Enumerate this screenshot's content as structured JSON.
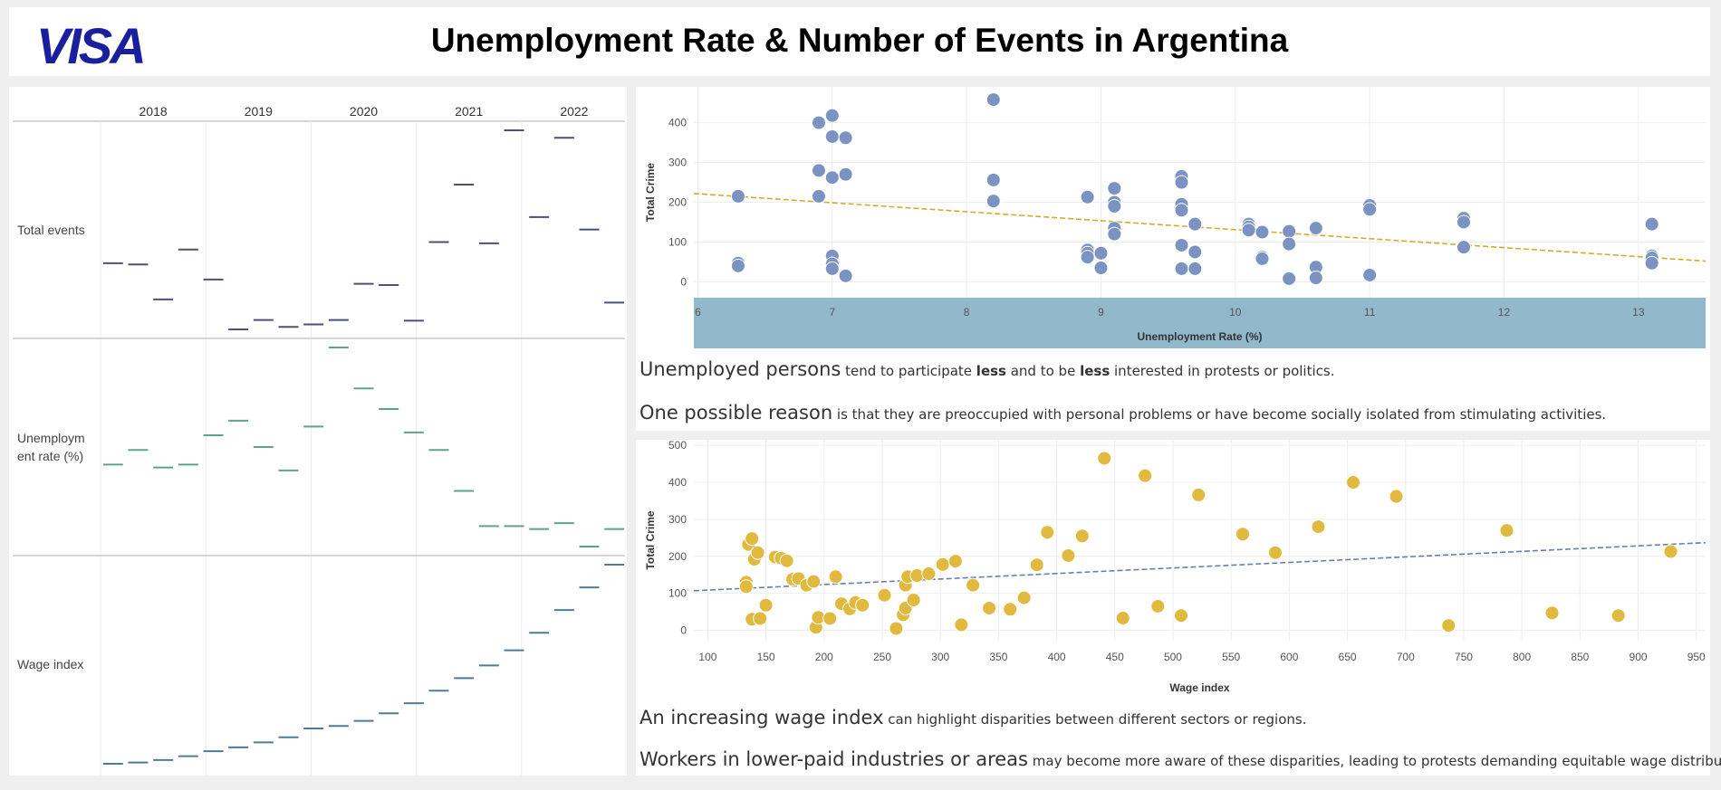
{
  "header": {
    "logo_text": "VISA",
    "title": "Unemployment Rate & Number of Events in Argentina"
  },
  "colors": {
    "events": "#4e4f7a",
    "unemployment": "#5fa38d",
    "wage": "#4b7d96",
    "scatter1_dot": "#7b93c2",
    "scatter1_trend": "#d4ac2b",
    "scatter2_dot": "#e0b93e",
    "scatter2_trend": "#6a7fb0",
    "axis_band": "#92b8cc",
    "logo": "#1a1f9e"
  },
  "left_chart": {
    "years": [
      "2018",
      "2019",
      "2020",
      "2021",
      "2022"
    ],
    "rows": [
      {
        "label": "Total events",
        "label_lines": [
          "Total events"
        ],
        "values": [
          290,
          288,
          232,
          312,
          264,
          184,
          199,
          188,
          192,
          199,
          257,
          255,
          198,
          324,
          416,
          322,
          503,
          364,
          491,
          344,
          227
        ]
      },
      {
        "label": "Unemployment rate (%)",
        "label_lines": [
          "Unemploym",
          "ent rate (%)"
        ],
        "values": [
          9.1,
          9.6,
          9.0,
          9.1,
          10.1,
          10.6,
          9.7,
          8.9,
          10.4,
          13.1,
          11.7,
          11.0,
          10.2,
          9.6,
          8.2,
          7.0,
          7.0,
          6.9,
          7.1,
          6.3,
          6.9
        ]
      },
      {
        "label": "Wage index",
        "label_lines": [
          "Wage index"
        ],
        "values": [
          130,
          135,
          145,
          160,
          180,
          195,
          215,
          235,
          270,
          280,
          300,
          330,
          370,
          420,
          470,
          520,
          580,
          650,
          740,
          830,
          920
        ]
      }
    ]
  },
  "chart_data": [
    {
      "type": "scatter",
      "xlabel": "Unemployment Rate (%)",
      "ylabel": "Total Crime",
      "xlim": [
        5.97,
        13.5
      ],
      "ylim": [
        -40,
        490
      ],
      "xticks": [
        6,
        7,
        8,
        9,
        10,
        11,
        12,
        13
      ],
      "yticks": [
        0,
        100,
        200,
        300,
        400
      ],
      "trend": {
        "x": [
          5.97,
          13.5
        ],
        "y": [
          222,
          52
        ]
      },
      "points": [
        [
          6.3,
          215
        ],
        [
          6.3,
          47
        ],
        [
          6.3,
          40
        ],
        [
          6.9,
          400
        ],
        [
          6.9,
          280
        ],
        [
          6.9,
          215
        ],
        [
          7.0,
          418
        ],
        [
          7.0,
          365
        ],
        [
          7.0,
          262
        ],
        [
          7.0,
          65
        ],
        [
          7.0,
          45
        ],
        [
          7.0,
          33
        ],
        [
          7.1,
          362
        ],
        [
          7.1,
          270
        ],
        [
          7.1,
          15
        ],
        [
          8.2,
          458
        ],
        [
          8.2,
          256
        ],
        [
          8.2,
          203
        ],
        [
          8.9,
          213
        ],
        [
          8.9,
          80
        ],
        [
          8.9,
          72
        ],
        [
          8.9,
          62
        ],
        [
          9.0,
          72
        ],
        [
          9.0,
          35
        ],
        [
          9.1,
          235
        ],
        [
          9.1,
          200
        ],
        [
          9.1,
          190
        ],
        [
          9.1,
          135
        ],
        [
          9.1,
          120
        ],
        [
          9.6,
          265
        ],
        [
          9.6,
          250
        ],
        [
          9.6,
          195
        ],
        [
          9.6,
          180
        ],
        [
          9.6,
          92
        ],
        [
          9.6,
          33
        ],
        [
          9.7,
          145
        ],
        [
          9.7,
          75
        ],
        [
          9.7,
          33
        ],
        [
          10.1,
          145
        ],
        [
          10.1,
          138
        ],
        [
          10.1,
          130
        ],
        [
          10.2,
          125
        ],
        [
          10.2,
          62
        ],
        [
          10.2,
          58
        ],
        [
          10.4,
          127
        ],
        [
          10.4,
          95
        ],
        [
          10.4,
          8
        ],
        [
          10.6,
          135
        ],
        [
          10.6,
          37
        ],
        [
          10.6,
          10
        ],
        [
          11.0,
          192
        ],
        [
          11.0,
          182
        ],
        [
          11.0,
          17
        ],
        [
          11.7,
          160
        ],
        [
          11.7,
          150
        ],
        [
          11.7,
          87
        ],
        [
          13.1,
          145
        ],
        [
          13.1,
          65
        ],
        [
          13.1,
          60
        ],
        [
          13.1,
          47
        ]
      ]
    },
    {
      "type": "scatter",
      "xlabel": "Wage index",
      "ylabel": "Total Crime",
      "xlim": [
        88,
        958
      ],
      "ylim": [
        -28,
        515
      ],
      "xticks": [
        100,
        150,
        200,
        250,
        300,
        350,
        400,
        450,
        500,
        550,
        600,
        650,
        700,
        750,
        800,
        850,
        900,
        950
      ],
      "yticks": [
        0,
        100,
        200,
        300,
        400,
        500
      ],
      "trend": {
        "x": [
          88,
          958
        ],
        "y": [
          107,
          237
        ]
      },
      "points": [
        [
          133,
          130
        ],
        [
          133,
          118
        ],
        [
          135,
          232
        ],
        [
          138,
          248
        ],
        [
          140,
          192
        ],
        [
          143,
          210
        ],
        [
          138,
          30
        ],
        [
          145,
          32
        ],
        [
          150,
          68
        ],
        [
          158,
          198
        ],
        [
          163,
          195
        ],
        [
          168,
          188
        ],
        [
          173,
          138
        ],
        [
          178,
          140
        ],
        [
          185,
          122
        ],
        [
          191,
          132
        ],
        [
          193,
          8
        ],
        [
          195,
          35
        ],
        [
          205,
          32
        ],
        [
          210,
          145
        ],
        [
          215,
          72
        ],
        [
          222,
          58
        ],
        [
          227,
          75
        ],
        [
          233,
          68
        ],
        [
          252,
          95
        ],
        [
          262,
          5
        ],
        [
          268,
          42
        ],
        [
          270,
          60
        ],
        [
          270,
          122
        ],
        [
          272,
          145
        ],
        [
          277,
          82
        ],
        [
          280,
          148
        ],
        [
          290,
          153
        ],
        [
          302,
          178
        ],
        [
          313,
          187
        ],
        [
          318,
          15
        ],
        [
          328,
          122
        ],
        [
          342,
          60
        ],
        [
          360,
          57
        ],
        [
          372,
          88
        ],
        [
          383,
          177
        ],
        [
          392,
          265
        ],
        [
          410,
          202
        ],
        [
          422,
          255
        ],
        [
          441,
          465
        ],
        [
          457,
          33
        ],
        [
          476,
          418
        ],
        [
          487,
          65
        ],
        [
          507,
          40
        ],
        [
          522,
          366
        ],
        [
          560,
          260
        ],
        [
          588,
          210
        ],
        [
          625,
          280
        ],
        [
          655,
          400
        ],
        [
          692,
          362
        ],
        [
          737,
          13
        ],
        [
          787,
          270
        ],
        [
          826,
          47
        ],
        [
          883,
          40
        ],
        [
          928,
          213
        ]
      ]
    }
  ],
  "insights": {
    "top": [
      {
        "big": "Unemployed persons",
        "parts": [
          " tend to participate ",
          "less",
          " and to be ",
          "less",
          " interested in protests or politics."
        ]
      },
      {
        "big": "One possible reason",
        "parts": [
          " is that they are preoccupied with personal problems or have become socially isolated from stimulating activities."
        ]
      }
    ],
    "bottom": [
      {
        "big": "An increasing wage index",
        "parts": [
          " can highlight disparities between different sectors or regions."
        ]
      },
      {
        "big": "Workers in lower-paid industries or areas",
        "parts": [
          " may become more aware of these disparities, leading to protests demanding equitable wage distribution."
        ]
      }
    ]
  }
}
